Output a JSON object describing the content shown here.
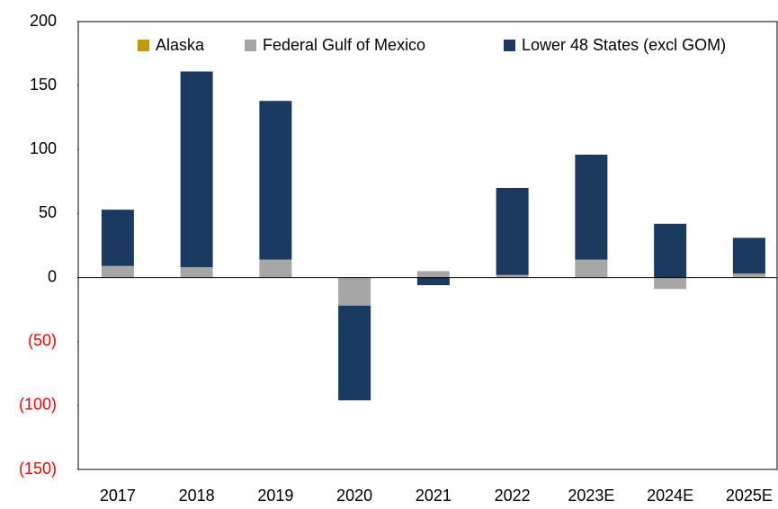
{
  "chart_data": {
    "type": "stacked_bar",
    "categories": [
      "2017",
      "2018",
      "2019",
      "2020",
      "2021",
      "2022",
      "2023E",
      "2024E",
      "2025E"
    ],
    "series": [
      {
        "name": "Alaska",
        "color": "#c49a00",
        "values": [
          0,
          0,
          0,
          0,
          0,
          0,
          0,
          0,
          0
        ]
      },
      {
        "name": "Federal Gulf of Mexico",
        "color": "#a6a6a6",
        "values": [
          9,
          8,
          14,
          -22,
          5,
          2,
          14,
          -9,
          3
        ]
      },
      {
        "name": "Lower 48 States (excl GOM)",
        "color": "#1b3a5f",
        "values": [
          44,
          153,
          124,
          -74,
          -6,
          68,
          82,
          42,
          28
        ]
      }
    ],
    "ylim": [
      -150,
      200
    ],
    "yticks": [
      {
        "value": -150,
        "label": "(150)"
      },
      {
        "value": -100,
        "label": "(100)"
      },
      {
        "value": -50,
        "label": "(50)"
      },
      0,
      50,
      100,
      150,
      200
    ],
    "negative_tick_color": "#ff0000",
    "legend": "top"
  }
}
